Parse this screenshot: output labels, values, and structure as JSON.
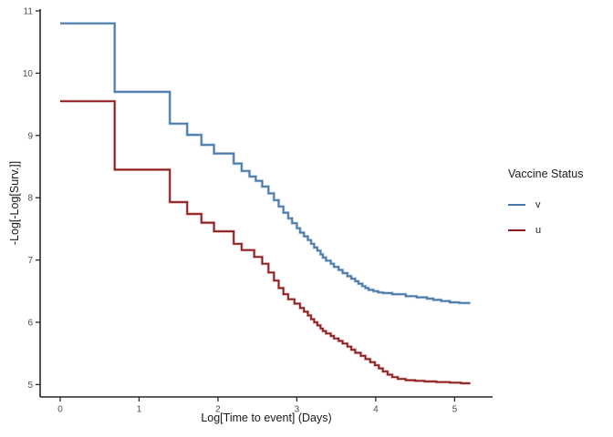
{
  "chart_data": {
    "type": "line",
    "subtype": "step-survival-cloglog",
    "title": "",
    "xlabel": "Log[Time to event] (Days)",
    "ylabel": "-Log[-Log[Surv.]]",
    "x_ticks": [
      0,
      1,
      2,
      3,
      4,
      5
    ],
    "y_ticks": [
      5,
      6,
      7,
      8,
      9,
      10,
      11
    ],
    "xlim": [
      -0.27,
      5.48
    ],
    "ylim": [
      4.83,
      11.03
    ],
    "grid": false,
    "axis_color": "#262626",
    "tick_label_color": "#4d4d4d",
    "x_end": 5.2,
    "legend": {
      "title": "Vaccine Status",
      "position": "right"
    },
    "series": [
      {
        "name": "v",
        "color": "#4878a8",
        "halo": "#b5cade",
        "points": [
          [
            0,
            10.8
          ],
          [
            0.69,
            9.7
          ],
          [
            1.39,
            9.19
          ],
          [
            1.61,
            9.01
          ],
          [
            1.79,
            8.85
          ],
          [
            1.95,
            8.71
          ],
          [
            2.2,
            8.55
          ],
          [
            2.3,
            8.43
          ],
          [
            2.4,
            8.34
          ],
          [
            2.48,
            8.27
          ],
          [
            2.56,
            8.18
          ],
          [
            2.64,
            8.07
          ],
          [
            2.71,
            7.96
          ],
          [
            2.77,
            7.86
          ],
          [
            2.83,
            7.76
          ],
          [
            2.89,
            7.67
          ],
          [
            2.94,
            7.59
          ],
          [
            3.0,
            7.51
          ],
          [
            3.04,
            7.44
          ],
          [
            3.09,
            7.38
          ],
          [
            3.14,
            7.32
          ],
          [
            3.18,
            7.26
          ],
          [
            3.22,
            7.2
          ],
          [
            3.26,
            7.15
          ],
          [
            3.3,
            7.09
          ],
          [
            3.33,
            7.04
          ],
          [
            3.37,
            6.99
          ],
          [
            3.43,
            6.94
          ],
          [
            3.47,
            6.89
          ],
          [
            3.53,
            6.84
          ],
          [
            3.58,
            6.79
          ],
          [
            3.64,
            6.74
          ],
          [
            3.69,
            6.7
          ],
          [
            3.74,
            6.66
          ],
          [
            3.78,
            6.62
          ],
          [
            3.83,
            6.58
          ],
          [
            3.87,
            6.55
          ],
          [
            3.91,
            6.52
          ],
          [
            3.97,
            6.5
          ],
          [
            4.03,
            6.48
          ],
          [
            4.09,
            6.47
          ],
          [
            4.21,
            6.45
          ],
          [
            4.38,
            6.42
          ],
          [
            4.52,
            6.4
          ],
          [
            4.65,
            6.38
          ],
          [
            4.73,
            6.36
          ],
          [
            4.83,
            6.34
          ],
          [
            4.94,
            6.32
          ],
          [
            5.06,
            6.31
          ]
        ]
      },
      {
        "name": "u",
        "color": "#8b1a1e",
        "halo": "#dcb2ae",
        "points": [
          [
            0,
            9.55
          ],
          [
            0.69,
            8.45
          ],
          [
            1.39,
            7.93
          ],
          [
            1.61,
            7.74
          ],
          [
            1.79,
            7.6
          ],
          [
            1.95,
            7.46
          ],
          [
            2.2,
            7.26
          ],
          [
            2.3,
            7.16
          ],
          [
            2.46,
            7.05
          ],
          [
            2.56,
            6.94
          ],
          [
            2.64,
            6.8
          ],
          [
            2.71,
            6.67
          ],
          [
            2.77,
            6.55
          ],
          [
            2.83,
            6.45
          ],
          [
            2.89,
            6.37
          ],
          [
            2.97,
            6.3
          ],
          [
            3.04,
            6.23
          ],
          [
            3.09,
            6.17
          ],
          [
            3.14,
            6.11
          ],
          [
            3.18,
            6.05
          ],
          [
            3.22,
            6.0
          ],
          [
            3.26,
            5.95
          ],
          [
            3.3,
            5.9
          ],
          [
            3.33,
            5.86
          ],
          [
            3.37,
            5.82
          ],
          [
            3.43,
            5.78
          ],
          [
            3.47,
            5.74
          ],
          [
            3.53,
            5.7
          ],
          [
            3.58,
            5.66
          ],
          [
            3.64,
            5.61
          ],
          [
            3.69,
            5.56
          ],
          [
            3.74,
            5.51
          ],
          [
            3.81,
            5.46
          ],
          [
            3.87,
            5.41
          ],
          [
            3.93,
            5.36
          ],
          [
            3.99,
            5.31
          ],
          [
            4.04,
            5.26
          ],
          [
            4.09,
            5.21
          ],
          [
            4.15,
            5.16
          ],
          [
            4.21,
            5.12
          ],
          [
            4.28,
            5.09
          ],
          [
            4.38,
            5.07
          ],
          [
            4.5,
            5.06
          ],
          [
            4.62,
            5.05
          ],
          [
            4.77,
            5.04
          ],
          [
            4.94,
            5.03
          ],
          [
            5.08,
            5.02
          ]
        ]
      }
    ]
  }
}
